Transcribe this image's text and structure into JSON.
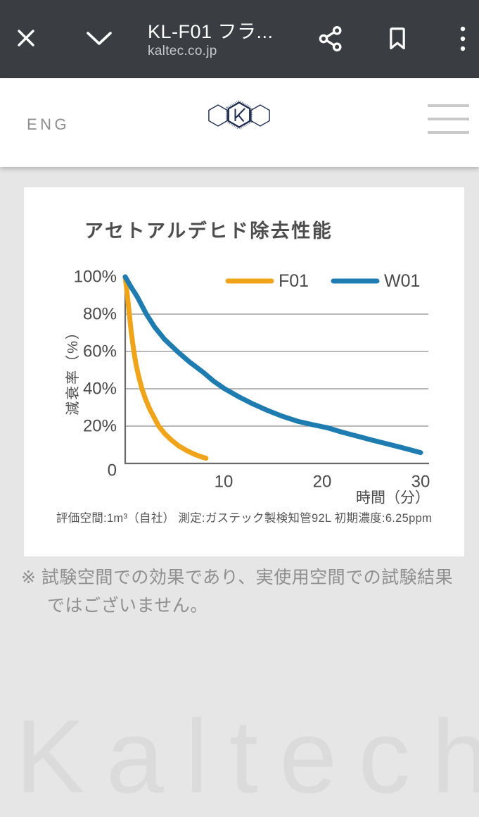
{
  "browser_bar": {
    "title": "KL-F01 フラ...",
    "url": "kaltec.co.jp",
    "bg_color": "#3A3D41"
  },
  "site_header": {
    "language_link": "ENG",
    "logo_monogram": "K"
  },
  "chart_data": {
    "type": "line",
    "title": "アセトアルデヒド除去性能",
    "xlabel": "時間（分）",
    "ylabel": "減衰率（%）",
    "xlim": [
      0,
      30
    ],
    "ylim": [
      0,
      100
    ],
    "x_ticks": [
      {
        "value": 10,
        "label": "10"
      },
      {
        "value": 20,
        "label": "20"
      },
      {
        "value": 30,
        "label": "30"
      }
    ],
    "y_ticks": [
      {
        "value": 100,
        "label": "100%"
      },
      {
        "value": 80,
        "label": "80%"
      },
      {
        "value": 60,
        "label": "60%"
      },
      {
        "value": 40,
        "label": "40%"
      },
      {
        "value": 20,
        "label": "20%"
      },
      {
        "value": 0,
        "label": "0"
      }
    ],
    "gridlines": {
      "horizontal_at": [
        80,
        60,
        40,
        20
      ]
    },
    "legend_position": "top-right-inside",
    "axis_color": "#6A6A6A",
    "grid_color": "#8C8C8C",
    "tick_text_color": "#4A4A4A",
    "series": [
      {
        "name": "F01",
        "color": "#F0A41A",
        "points": [
          [
            0,
            100
          ],
          [
            0.2,
            91
          ],
          [
            0.4,
            81
          ],
          [
            0.6,
            71
          ],
          [
            0.85,
            61
          ],
          [
            1.1,
            53
          ],
          [
            1.4,
            46
          ],
          [
            1.7,
            40
          ],
          [
            2.1,
            34
          ],
          [
            2.5,
            29
          ],
          [
            3.0,
            24
          ],
          [
            3.4,
            20
          ],
          [
            4.0,
            16
          ],
          [
            4.7,
            12.5
          ],
          [
            5.4,
            9.5
          ],
          [
            6.2,
            7
          ],
          [
            7.0,
            5
          ],
          [
            7.7,
            3.6
          ],
          [
            8.2,
            2.8
          ]
        ]
      },
      {
        "name": "W01",
        "color": "#1E7CB0",
        "points": [
          [
            0,
            100
          ],
          [
            0.6,
            94.5
          ],
          [
            1.2,
            89.5
          ],
          [
            2.15,
            80
          ],
          [
            3,
            73
          ],
          [
            4,
            66.5
          ],
          [
            5.3,
            60
          ],
          [
            6.5,
            54.5
          ],
          [
            8,
            48.5
          ],
          [
            9,
            44
          ],
          [
            10.1,
            40
          ],
          [
            11.5,
            35.8
          ],
          [
            13,
            31.8
          ],
          [
            14.5,
            28.3
          ],
          [
            16,
            25.2
          ],
          [
            17.5,
            22.6
          ],
          [
            19,
            20.8
          ],
          [
            20.6,
            19
          ],
          [
            22,
            16.8
          ],
          [
            23.5,
            14.7
          ],
          [
            25,
            12.6
          ],
          [
            26.5,
            10.6
          ],
          [
            28,
            8.6
          ],
          [
            29,
            7.2
          ],
          [
            30,
            5.8
          ]
        ]
      }
    ],
    "footnote": "評価空間:1m³（自社） 測定:ガステック製検知管92L 初期濃度:6.25ppm"
  },
  "disclaimer": "※ 試験空間での効果であり、実使用空間での試験結果\nではございません。",
  "watermark": "Kaltech"
}
